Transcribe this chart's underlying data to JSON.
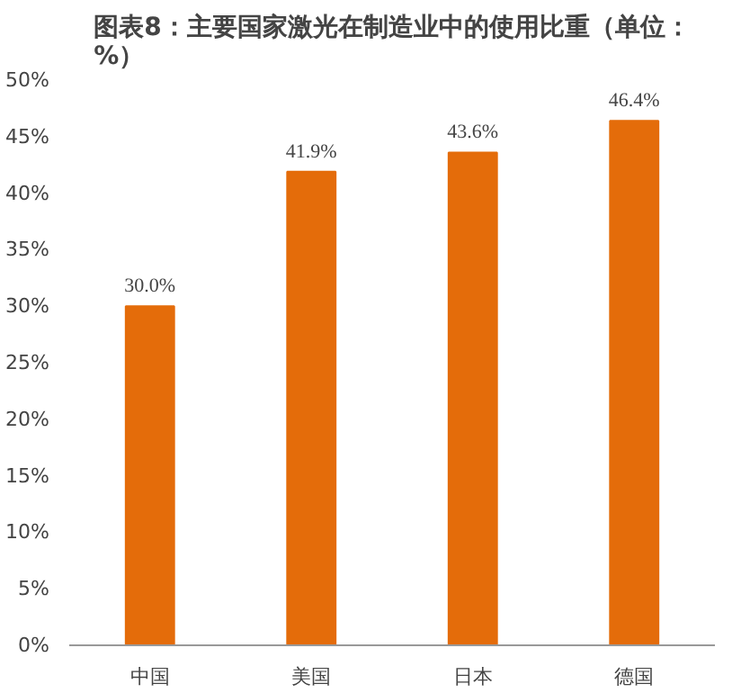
{
  "chart_data": {
    "type": "bar",
    "title": "图表8：主要国家激光在制造业中的使用比重（单位：%）",
    "categories": [
      "中国",
      "美国",
      "日本",
      "德国"
    ],
    "values": [
      30.0,
      41.9,
      43.6,
      46.4
    ],
    "color": "#e46c0a",
    "ylim": [
      0,
      50
    ],
    "yticks": [
      {
        "value": 0,
        "label": "0%"
      },
      {
        "value": 5,
        "label": "5%"
      },
      {
        "value": 10,
        "label": "10%"
      },
      {
        "value": 15,
        "label": "15%"
      },
      {
        "value": 20,
        "label": "20%"
      },
      {
        "value": 25,
        "label": "25%"
      },
      {
        "value": 30,
        "label": "30%"
      },
      {
        "value": 35,
        "label": "35%"
      },
      {
        "value": 40,
        "label": "40%"
      },
      {
        "value": 45,
        "label": "45%"
      },
      {
        "value": 50,
        "label": "50%"
      }
    ],
    "value_labels": [
      "30.0%",
      "41.9%",
      "43.6%",
      "46.4%"
    ],
    "grid": false
  }
}
